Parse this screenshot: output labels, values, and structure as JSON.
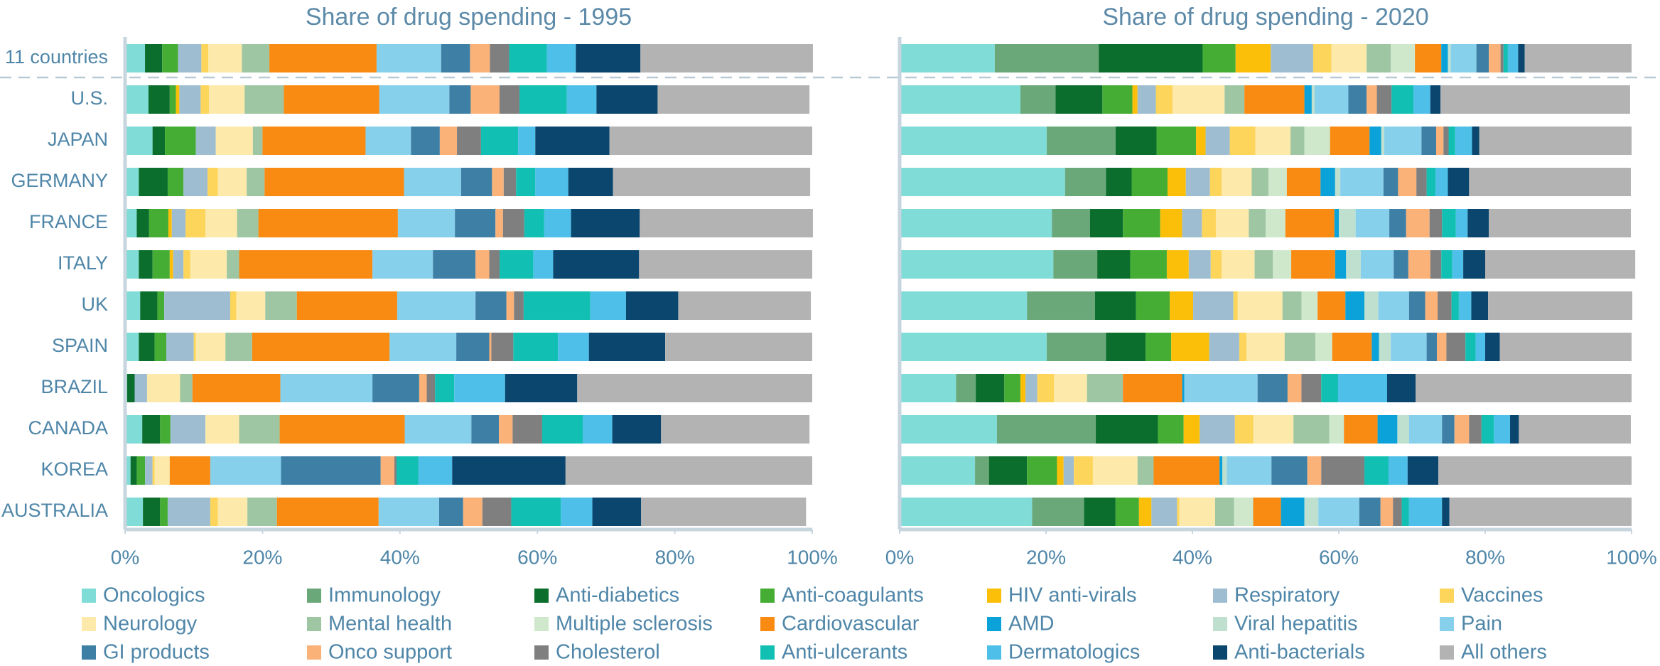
{
  "chart_data": [
    {
      "type": "stacked_barh",
      "title": "Share of drug spending - 1995",
      "categories": [
        "11 countries",
        "U.S.",
        "JAPAN",
        "GERMANY",
        "FRANCE",
        "ITALY",
        "UK",
        "SPAIN",
        "BRAZIL",
        "CANADA",
        "KOREA",
        "AUSTRALIA"
      ],
      "xlim": [
        0,
        100
      ],
      "xticks": [
        {
          "value": 0,
          "label": "0%"
        },
        {
          "value": 20,
          "label": "20%"
        },
        {
          "value": 40,
          "label": "40%"
        },
        {
          "value": 60,
          "label": "60%"
        },
        {
          "value": 80,
          "label": "80%"
        },
        {
          "value": 100,
          "label": "100%"
        }
      ],
      "series": [
        {
          "name": "Oncologics",
          "color": "#7fdcd6",
          "values": [
            2.9,
            3.4,
            4,
            2,
            1.7,
            2,
            2.2,
            2,
            0.3,
            2.5,
            0.8,
            2.6
          ]
        },
        {
          "name": "Immunology",
          "color": "#6aa87a",
          "values": [
            0,
            0,
            0,
            0,
            0,
            0,
            0,
            0,
            0,
            0,
            0,
            0
          ]
        },
        {
          "name": "Anti-diabetics",
          "color": "#0b6e2c",
          "values": [
            2.5,
            3.1,
            1.8,
            4.2,
            1.8,
            2,
            2.5,
            2.3,
            1.1,
            2.6,
            0.9,
            2.5
          ]
        },
        {
          "name": "Anti-coagulants",
          "color": "#45ad34",
          "values": [
            2.3,
            0.9,
            4.5,
            2.3,
            2.8,
            2.5,
            1,
            1.7,
            0,
            1.5,
            1.2,
            1.1
          ]
        },
        {
          "name": "HIV anti-virals",
          "color": "#fbbf0a",
          "values": [
            0,
            0.5,
            0,
            0,
            0.5,
            0.5,
            0,
            0,
            0,
            0,
            0,
            0
          ]
        },
        {
          "name": "Respiratory",
          "color": "#9fbdd1",
          "values": [
            3.4,
            3.1,
            2.9,
            3.5,
            2,
            1.5,
            9.6,
            4,
            1.8,
            5.1,
            1.1,
            6.2
          ]
        },
        {
          "name": "Vaccines",
          "color": "#fcd55a",
          "values": [
            1,
            1.2,
            0,
            1.5,
            2.9,
            1,
            0.9,
            0.3,
            0,
            0,
            0.3,
            1.1
          ]
        },
        {
          "name": "Neurology",
          "color": "#fde9a9",
          "values": [
            4.9,
            5.2,
            5.4,
            4.2,
            4.6,
            5.3,
            4.2,
            4.3,
            4.8,
            4.9,
            2.2,
            4.3
          ]
        },
        {
          "name": "Mental health",
          "color": "#9ec6a2",
          "values": [
            4,
            5.7,
            1.4,
            2.6,
            3.1,
            1.8,
            4.6,
            3.9,
            1.8,
            5.9,
            0,
            4.3
          ]
        },
        {
          "name": "Multiple sclerosis",
          "color": "#cfe8cc",
          "values": [
            0,
            0,
            0,
            0,
            0,
            0,
            0,
            0,
            0,
            0,
            0,
            0
          ]
        },
        {
          "name": "Cardiovascular",
          "color": "#f98a12",
          "values": [
            15.6,
            13.9,
            15,
            20.3,
            20.3,
            19.4,
            14.6,
            20,
            12.8,
            18.2,
            5.9,
            14.8
          ]
        },
        {
          "name": "AMD",
          "color": "#0aa2d9",
          "values": [
            0,
            0,
            0,
            0,
            0,
            0,
            0,
            0,
            0,
            0,
            0,
            0
          ]
        },
        {
          "name": "Viral hepatitis",
          "color": "#bfe0cf",
          "values": [
            0,
            0,
            0,
            0,
            0,
            0,
            0,
            0,
            0,
            0,
            0,
            0
          ]
        },
        {
          "name": "Pain",
          "color": "#86d0ec",
          "values": [
            9.4,
            10.2,
            6.6,
            8.3,
            8.3,
            8.8,
            11.4,
            9.7,
            13.4,
            9.7,
            10.3,
            8.8
          ]
        },
        {
          "name": "GI products",
          "color": "#3e7fa6",
          "values": [
            4.2,
            3.1,
            4.2,
            4.5,
            5.9,
            6.2,
            4.5,
            4.8,
            6.8,
            4,
            14.5,
            3.5
          ]
        },
        {
          "name": "Onco support",
          "color": "#fbb279",
          "values": [
            2.9,
            4.2,
            2.5,
            1.7,
            1.1,
            2,
            1.1,
            0.3,
            1.1,
            2,
            2,
            2.8
          ]
        },
        {
          "name": "Cholesterol",
          "color": "#7f7f7f",
          "values": [
            2.8,
            2.9,
            3.5,
            1.8,
            3.1,
            1.5,
            1.4,
            3.2,
            1.2,
            4.3,
            0.3,
            4.2
          ]
        },
        {
          "name": "Anti-ulcerants",
          "color": "#12c0b3",
          "values": [
            5.5,
            6.9,
            5.4,
            2.8,
            2.9,
            4.9,
            9.7,
            6.5,
            2.8,
            5.9,
            3.2,
            7.2
          ]
        },
        {
          "name": "Dermatologics",
          "color": "#4dbfe9",
          "values": [
            4.2,
            4.3,
            2.5,
            4.8,
            3.9,
            2.9,
            5.2,
            4.5,
            7.4,
            4.3,
            4.9,
            4.6
          ]
        },
        {
          "name": "Anti-bacterials",
          "color": "#0a466e",
          "values": [
            9.4,
            8.9,
            10.8,
            6.5,
            10,
            12.5,
            7.6,
            11.1,
            10.5,
            7.1,
            16.5,
            7.1
          ]
        },
        {
          "name": "All others",
          "color": "#b3b3b3",
          "values": [
            25.1,
            22.1,
            29.5,
            28.7,
            25.2,
            25.2,
            19.3,
            21.4,
            34.2,
            21.6,
            35.9,
            24
          ]
        }
      ]
    },
    {
      "type": "stacked_barh",
      "title": "Share of drug spending - 2020",
      "xlim": [
        0,
        100
      ],
      "xticks": [
        {
          "value": 0,
          "label": "0%"
        },
        {
          "value": 20,
          "label": "20%"
        },
        {
          "value": 40,
          "label": "40%"
        },
        {
          "value": 60,
          "label": "60%"
        },
        {
          "value": 80,
          "label": "80%"
        },
        {
          "value": 100,
          "label": "100%"
        }
      ],
      "series": [
        {
          "values": [
            13,
            16.5,
            20.1,
            22.6,
            20.8,
            21,
            17.4,
            20.1,
            7.7,
            13.3,
            10.3,
            18.1
          ]
        },
        {
          "values": [
            14.2,
            4.8,
            9.4,
            5.6,
            5.2,
            6,
            9.3,
            8.1,
            2.7,
            13.5,
            1.9,
            7.1
          ]
        },
        {
          "values": [
            14.2,
            6.4,
            5.6,
            3.5,
            4.5,
            4.5,
            5.6,
            5.4,
            3.9,
            8.5,
            5.2,
            4.3
          ]
        },
        {
          "values": [
            4.5,
            4.1,
            5.4,
            4.9,
            5.1,
            5,
            4.6,
            3.5,
            2.2,
            3.5,
            4.1,
            3.2
          ]
        },
        {
          "values": [
            4.8,
            0.7,
            1.3,
            2.5,
            3,
            3,
            3.2,
            5.2,
            0.7,
            2.2,
            0.9,
            1.7
          ]
        },
        {
          "values": [
            5.8,
            2.5,
            3.3,
            3.3,
            2.7,
            3,
            5.5,
            4.1,
            1.6,
            4.8,
            1.4,
            3.5
          ]
        },
        {
          "values": [
            2.5,
            2.3,
            3.5,
            1.6,
            1.9,
            1.5,
            0.6,
            1,
            2.3,
            2.5,
            2.6,
            0.3
          ]
        },
        {
          "values": [
            4.8,
            7.1,
            4.8,
            4.1,
            4.5,
            4.5,
            6.1,
            5.2,
            4.5,
            5.5,
            6.1,
            4.9
          ]
        },
        {
          "values": [
            3.3,
            2.7,
            1.9,
            2.3,
            2.3,
            2.5,
            2.6,
            4.2,
            4.9,
            4.9,
            2.2,
            2.6
          ]
        },
        {
          "values": [
            3.3,
            0,
            3.5,
            2.5,
            2.7,
            2.5,
            2.2,
            2.3,
            0,
            2,
            0,
            2.6
          ]
        },
        {
          "values": [
            3.6,
            8.2,
            5.4,
            4.6,
            6.7,
            6,
            3.8,
            5.4,
            8.1,
            4.6,
            9,
            3.8
          ]
        },
        {
          "values": [
            0.9,
            1,
            1.6,
            2,
            0.6,
            1.5,
            2.6,
            1,
            0.3,
            2.7,
            0.4,
            3.2
          ]
        },
        {
          "values": [
            0.4,
            0.4,
            0.4,
            0.7,
            2.3,
            2,
            1.9,
            1.6,
            0,
            1.6,
            0.6,
            1.9
          ]
        },
        {
          "values": [
            3.5,
            4.6,
            5.1,
            5.9,
            4.6,
            4.5,
            4.2,
            4.9,
            10,
            4.5,
            6.1,
            5.6
          ]
        },
        {
          "values": [
            1.7,
            2.5,
            2,
            2,
            2.3,
            2,
            2.2,
            1.4,
            4.1,
            1.7,
            4.9,
            2.9
          ]
        },
        {
          "values": [
            1.6,
            1.4,
            1,
            2.5,
            3.2,
            3,
            1.7,
            1.3,
            1.9,
            2,
            1.9,
            1.7
          ]
        },
        {
          "values": [
            0.4,
            2,
            0.7,
            1.4,
            1.7,
            1.5,
            1.9,
            2.6,
            2.7,
            1.7,
            5.9,
            1.2
          ]
        },
        {
          "values": [
            0.6,
            3,
            0.9,
            1.2,
            1.9,
            1.5,
            1,
            1.4,
            2.3,
            1.7,
            3.3,
            1
          ]
        },
        {
          "values": [
            1.4,
            2.3,
            2.3,
            1.7,
            1.6,
            1.5,
            1.7,
            1.3,
            6.7,
            2.2,
            2.6,
            4.5
          ]
        },
        {
          "values": [
            0.9,
            1.4,
            1,
            2.9,
            2.9,
            3,
            2.3,
            2,
            3.9,
            1.2,
            4.2,
            1
          ]
        },
        {
          "values": [
            14.6,
            25.9,
            20.8,
            22.1,
            19.4,
            20.5,
            19.7,
            18,
            29.5,
            15.3,
            26.4,
            24.9
          ]
        }
      ]
    }
  ]
}
